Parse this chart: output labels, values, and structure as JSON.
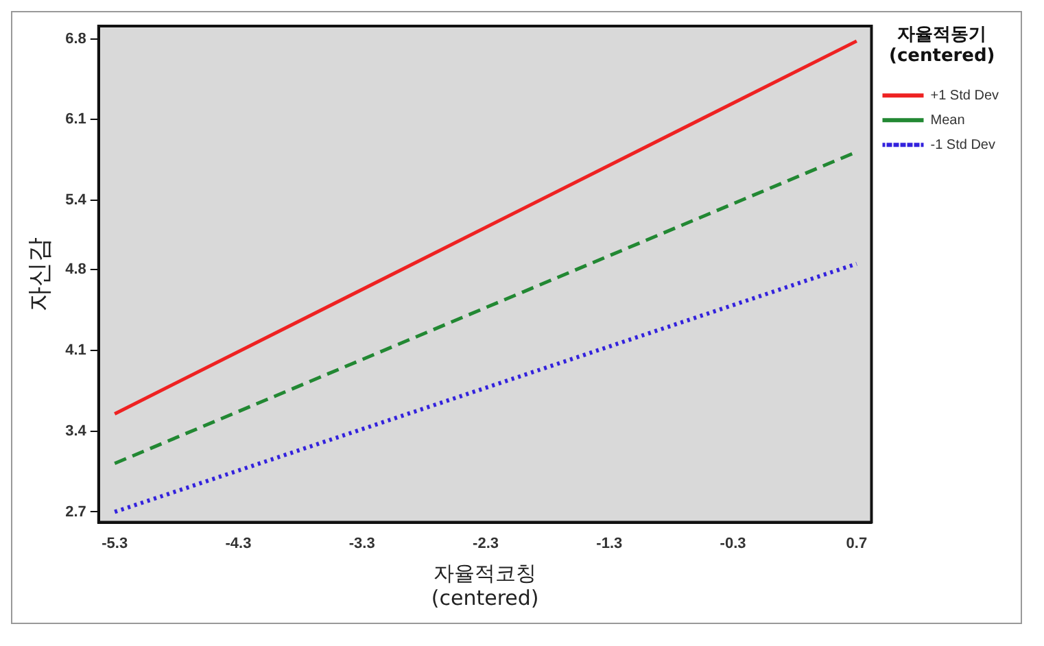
{
  "chart_data": {
    "type": "line",
    "xlabel": "자율적코칭\n(centered)",
    "ylabel": "자신감",
    "legend_title": "자율적동기\n(centered)",
    "x": [
      -5.3,
      0.7
    ],
    "series": [
      {
        "name": "+1 Std Dev",
        "color": "#ee2222",
        "values": [
          3.55,
          6.78
        ],
        "line_style": "solid"
      },
      {
        "name": "Mean",
        "color": "#228833",
        "values": [
          3.12,
          5.82
        ],
        "line_style": "dashed"
      },
      {
        "name": "-1 Std Dev",
        "color": "#3322dd",
        "values": [
          2.7,
          4.85
        ],
        "line_style": "dotted"
      }
    ],
    "xlim": [
      -5.43,
      0.82
    ],
    "xticks": [
      -5.3,
      -4.3,
      -3.3,
      -2.3,
      -1.3,
      -0.3,
      0.7
    ],
    "ylim": [
      2.61,
      6.91
    ],
    "yticks": [
      2.7,
      3.4,
      4.1,
      4.8,
      5.4,
      6.1,
      6.8
    ],
    "grid": false,
    "legend": "top right",
    "marker": "none"
  }
}
